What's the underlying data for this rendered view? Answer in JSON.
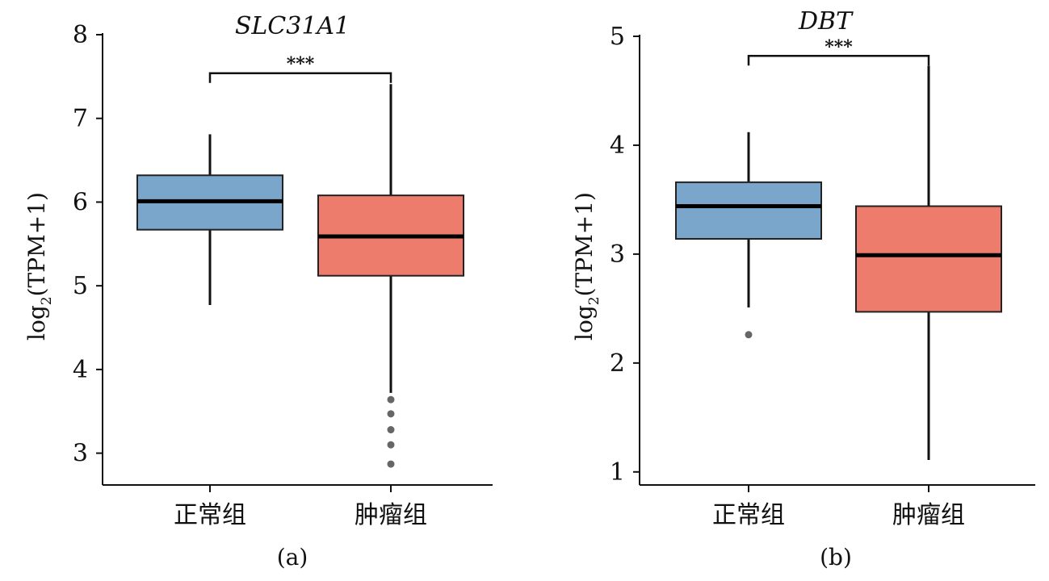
{
  "chart_data": [
    {
      "type": "box",
      "panel_label": "(a)",
      "title": "SLC31A1",
      "ylabel_main": "log",
      "ylabel_sub": "2",
      "ylabel_rest": "(TPM+1)",
      "ylim": [
        2.62,
        8.0
      ],
      "yticks": [
        3,
        4,
        5,
        6,
        7,
        8
      ],
      "categories": [
        "正常组",
        "肿瘤组"
      ],
      "boxes": [
        {
          "category": "正常组",
          "color": "#7aa6cc",
          "whisker_low": 4.77,
          "q1": 5.67,
          "median": 6.01,
          "q3": 6.32,
          "whisker_high": 6.81,
          "outliers": []
        },
        {
          "category": "肿瘤组",
          "color": "#ee7c6d",
          "whisker_low": 3.72,
          "q1": 5.12,
          "median": 5.59,
          "q3": 6.08,
          "whisker_high": 7.41,
          "outliers": [
            3.64,
            3.47,
            3.28,
            3.1,
            2.87
          ]
        }
      ],
      "significance": {
        "label": "***",
        "y": 7.54
      }
    },
    {
      "type": "box",
      "panel_label": "(b)",
      "title": "DBT",
      "ylabel_main": "log",
      "ylabel_sub": "2",
      "ylabel_rest": "(TPM+1)",
      "ylim": [
        0.88,
        5.0
      ],
      "yticks": [
        1,
        2,
        3,
        4,
        5
      ],
      "categories": [
        "正常组",
        "肿瘤组"
      ],
      "boxes": [
        {
          "category": "正常组",
          "color": "#7aa6cc",
          "whisker_low": 2.51,
          "q1": 3.14,
          "median": 3.44,
          "q3": 3.66,
          "whisker_high": 4.12,
          "outliers": [
            2.26
          ]
        },
        {
          "category": "肿瘤组",
          "color": "#ee7c6d",
          "whisker_low": 1.11,
          "q1": 2.47,
          "median": 2.99,
          "q3": 3.44,
          "whisker_high": 4.73,
          "outliers": []
        }
      ],
      "significance": {
        "label": "***",
        "y": 4.82
      }
    }
  ]
}
